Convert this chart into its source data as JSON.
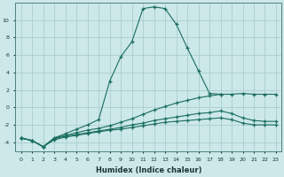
{
  "xlabel": "Humidex (Indice chaleur)",
  "ylabel": "",
  "xlim": [
    -0.5,
    23.5
  ],
  "ylim": [
    -5.0,
    12.0
  ],
  "bg_color": "#cce8e8",
  "grid_color": "#aacece",
  "line_color": "#1a6e60",
  "line1_x": [
    0,
    1,
    2,
    3,
    4,
    5,
    6,
    7,
    8,
    9,
    10,
    11,
    12,
    13,
    14,
    15,
    16,
    17,
    18
  ],
  "line1_y": [
    -3.5,
    -3.8,
    -4.5,
    -3.5,
    -3.0,
    -2.5,
    -2.0,
    -1.4,
    3.0,
    5.8,
    7.5,
    11.3,
    11.5,
    11.3,
    9.5,
    6.8,
    4.2,
    1.6,
    1.5
  ],
  "line2_x": [
    0,
    1,
    2,
    3,
    4,
    5,
    6,
    7,
    8,
    9,
    10,
    11,
    12,
    13,
    14,
    15,
    16,
    17,
    18,
    19,
    20,
    21,
    22,
    23
  ],
  "line2_y": [
    -3.5,
    -3.8,
    -4.5,
    -3.5,
    -3.2,
    -2.9,
    -2.6,
    -2.4,
    -2.1,
    -1.7,
    -1.3,
    -0.8,
    -0.3,
    0.1,
    0.5,
    0.8,
    1.1,
    1.3,
    1.5,
    1.5,
    1.6,
    1.5,
    1.5,
    1.5
  ],
  "line3_x": [
    0,
    1,
    2,
    3,
    4,
    5,
    6,
    7,
    8,
    9,
    10,
    11,
    12,
    13,
    14,
    15,
    16,
    17,
    18,
    19,
    20,
    21,
    22,
    23
  ],
  "line3_y": [
    -3.5,
    -3.8,
    -4.5,
    -3.6,
    -3.3,
    -3.1,
    -2.9,
    -2.7,
    -2.5,
    -2.3,
    -2.0,
    -1.8,
    -1.5,
    -1.3,
    -1.1,
    -0.9,
    -0.7,
    -0.6,
    -0.4,
    -0.7,
    -1.2,
    -1.5,
    -1.6,
    -1.6
  ],
  "line4_x": [
    0,
    1,
    2,
    3,
    4,
    5,
    6,
    7,
    8,
    9,
    10,
    11,
    12,
    13,
    14,
    15,
    16,
    17,
    18,
    19,
    20,
    21,
    22,
    23
  ],
  "line4_y": [
    -3.5,
    -3.8,
    -4.5,
    -3.7,
    -3.4,
    -3.2,
    -3.0,
    -2.8,
    -2.6,
    -2.5,
    -2.3,
    -2.1,
    -1.9,
    -1.7,
    -1.6,
    -1.5,
    -1.4,
    -1.3,
    -1.2,
    -1.4,
    -1.8,
    -2.0,
    -2.0,
    -2.0
  ],
  "xticks": [
    0,
    1,
    2,
    3,
    4,
    5,
    6,
    7,
    8,
    9,
    10,
    11,
    12,
    13,
    14,
    15,
    16,
    17,
    18,
    19,
    20,
    21,
    22,
    23
  ],
  "yticks": [
    -4,
    -2,
    0,
    2,
    4,
    6,
    8,
    10
  ]
}
